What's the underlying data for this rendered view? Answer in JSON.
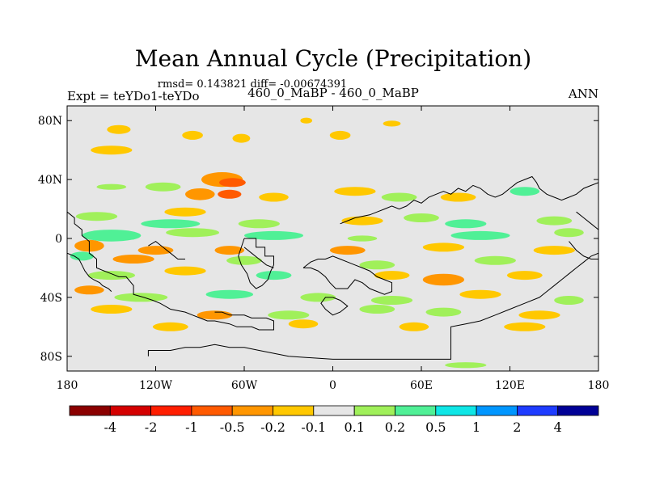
{
  "chart_data": {
    "type": "heatmap",
    "title": "Mean Annual Cycle (Precipitation)",
    "stats_line": "rmsd= 0.143821 diff= -0.00674391",
    "left_label": "Expt = teYDo1-teYDo",
    "center_label": "460_0_MaBP - 460_0_MaBP",
    "right_label": "ANN",
    "lon_range": [
      -180,
      180
    ],
    "lat_range": [
      -90,
      90
    ],
    "x_ticks": [
      {
        "lon": -180,
        "label": "180"
      },
      {
        "lon": -120,
        "label": "120W"
      },
      {
        "lon": -60,
        "label": "60W"
      },
      {
        "lon": 0,
        "label": "0"
      },
      {
        "lon": 60,
        "label": "60E"
      },
      {
        "lon": 120,
        "label": "120E"
      },
      {
        "lon": 180,
        "label": "180"
      }
    ],
    "y_ticks": [
      {
        "lat": 80,
        "label": "80N"
      },
      {
        "lat": 40,
        "label": "40N"
      },
      {
        "lat": 0,
        "label": "0"
      },
      {
        "lat": -40,
        "label": "40S"
      },
      {
        "lat": -80,
        "label": "80S"
      }
    ],
    "colorbar": {
      "levels": [
        "-4",
        "-2",
        "-1",
        "-0.5",
        "-0.2",
        "-0.1",
        "0.1",
        "0.2",
        "0.5",
        "1",
        "2",
        "4"
      ],
      "colors": [
        "#8b0000",
        "#d40000",
        "#ff1e00",
        "#ff5a00",
        "#ff9600",
        "#ffc800",
        "#e6e6e6",
        "#a0f05a",
        "#50f096",
        "#0fe6e6",
        "#0096ff",
        "#1e3cff",
        "#000096"
      ]
    },
    "anomalies": [
      {
        "lon": -150,
        "lat": 60,
        "rx": 14,
        "ry": 3,
        "value": -0.15
      },
      {
        "lon": -95,
        "lat": 70,
        "rx": 7,
        "ry": 3,
        "value": -0.15
      },
      {
        "lon": -62,
        "lat": 68,
        "rx": 6,
        "ry": 3,
        "value": -0.15
      },
      {
        "lon": -18,
        "lat": 80,
        "rx": 4,
        "ry": 2,
        "value": -0.15
      },
      {
        "lon": 5,
        "lat": 70,
        "rx": 7,
        "ry": 3,
        "value": -0.15
      },
      {
        "lon": 40,
        "lat": 78,
        "rx": 6,
        "ry": 2,
        "value": -0.15
      },
      {
        "lon": -145,
        "lat": 74,
        "rx": 8,
        "ry": 3,
        "value": -0.15
      },
      {
        "lon": -75,
        "lat": 40,
        "rx": 14,
        "ry": 5,
        "value": -0.3
      },
      {
        "lon": -68,
        "lat": 38,
        "rx": 9,
        "ry": 3,
        "value": -0.7
      },
      {
        "lon": -90,
        "lat": 30,
        "rx": 10,
        "ry": 4,
        "value": -0.3
      },
      {
        "lon": -70,
        "lat": 30,
        "rx": 8,
        "ry": 3,
        "value": -0.7
      },
      {
        "lon": -115,
        "lat": 35,
        "rx": 12,
        "ry": 3,
        "value": 0.15
      },
      {
        "lon": -150,
        "lat": 35,
        "rx": 10,
        "ry": 2,
        "value": 0.15
      },
      {
        "lon": -40,
        "lat": 28,
        "rx": 10,
        "ry": 3,
        "value": -0.15
      },
      {
        "lon": 15,
        "lat": 32,
        "rx": 14,
        "ry": 3,
        "value": -0.15
      },
      {
        "lon": 45,
        "lat": 28,
        "rx": 12,
        "ry": 3,
        "value": 0.15
      },
      {
        "lon": 85,
        "lat": 28,
        "rx": 12,
        "ry": 3,
        "value": -0.15
      },
      {
        "lon": 130,
        "lat": 32,
        "rx": 10,
        "ry": 3,
        "value": 0.3
      },
      {
        "lon": -160,
        "lat": 15,
        "rx": 14,
        "ry": 3,
        "value": 0.15
      },
      {
        "lon": -100,
        "lat": 18,
        "rx": 14,
        "ry": 3,
        "value": -0.15
      },
      {
        "lon": -110,
        "lat": 10,
        "rx": 20,
        "ry": 3,
        "value": 0.3
      },
      {
        "lon": -50,
        "lat": 10,
        "rx": 14,
        "ry": 3,
        "value": 0.15
      },
      {
        "lon": 20,
        "lat": 12,
        "rx": 14,
        "ry": 3,
        "value": -0.15
      },
      {
        "lon": 60,
        "lat": 14,
        "rx": 12,
        "ry": 3,
        "value": 0.15
      },
      {
        "lon": 90,
        "lat": 10,
        "rx": 14,
        "ry": 3,
        "value": 0.3
      },
      {
        "lon": 150,
        "lat": 12,
        "rx": 12,
        "ry": 3,
        "value": 0.15
      },
      {
        "lon": -150,
        "lat": 2,
        "rx": 20,
        "ry": 4,
        "value": 0.4
      },
      {
        "lon": -95,
        "lat": 4,
        "rx": 18,
        "ry": 3,
        "value": 0.15
      },
      {
        "lon": -40,
        "lat": 2,
        "rx": 20,
        "ry": 3,
        "value": 0.3
      },
      {
        "lon": 20,
        "lat": 0,
        "rx": 10,
        "ry": 2,
        "value": 0.15
      },
      {
        "lon": 100,
        "lat": 2,
        "rx": 20,
        "ry": 3,
        "value": 0.3
      },
      {
        "lon": 160,
        "lat": 4,
        "rx": 10,
        "ry": 3,
        "value": 0.15
      },
      {
        "lon": -165,
        "lat": -5,
        "rx": 10,
        "ry": 4,
        "value": -0.3
      },
      {
        "lon": -120,
        "lat": -8,
        "rx": 12,
        "ry": 3,
        "value": -0.3
      },
      {
        "lon": -70,
        "lat": -8,
        "rx": 10,
        "ry": 3,
        "value": -0.3
      },
      {
        "lon": 10,
        "lat": -8,
        "rx": 12,
        "ry": 3,
        "value": -0.3
      },
      {
        "lon": 75,
        "lat": -6,
        "rx": 14,
        "ry": 3,
        "value": -0.15
      },
      {
        "lon": 150,
        "lat": -8,
        "rx": 14,
        "ry": 3,
        "value": -0.15
      },
      {
        "lon": -170,
        "lat": -12,
        "rx": 8,
        "ry": 3,
        "value": 0.3
      },
      {
        "lon": -135,
        "lat": -14,
        "rx": 14,
        "ry": 3,
        "value": -0.3
      },
      {
        "lon": -60,
        "lat": -15,
        "rx": 12,
        "ry": 3,
        "value": 0.15
      },
      {
        "lon": 30,
        "lat": -18,
        "rx": 12,
        "ry": 3,
        "value": 0.15
      },
      {
        "lon": 110,
        "lat": -15,
        "rx": 14,
        "ry": 3,
        "value": 0.15
      },
      {
        "lon": -150,
        "lat": -25,
        "rx": 16,
        "ry": 3,
        "value": 0.15
      },
      {
        "lon": -100,
        "lat": -22,
        "rx": 14,
        "ry": 3,
        "value": -0.15
      },
      {
        "lon": -40,
        "lat": -25,
        "rx": 12,
        "ry": 3,
        "value": 0.3
      },
      {
        "lon": 40,
        "lat": -25,
        "rx": 12,
        "ry": 3,
        "value": -0.15
      },
      {
        "lon": 75,
        "lat": -28,
        "rx": 14,
        "ry": 4,
        "value": -0.3
      },
      {
        "lon": 130,
        "lat": -25,
        "rx": 12,
        "ry": 3,
        "value": -0.15
      },
      {
        "lon": -165,
        "lat": -35,
        "rx": 10,
        "ry": 3,
        "value": -0.3
      },
      {
        "lon": -130,
        "lat": -40,
        "rx": 18,
        "ry": 3,
        "value": 0.15
      },
      {
        "lon": -70,
        "lat": -38,
        "rx": 16,
        "ry": 3,
        "value": 0.3
      },
      {
        "lon": -10,
        "lat": -40,
        "rx": 12,
        "ry": 3,
        "value": 0.15
      },
      {
        "lon": 40,
        "lat": -42,
        "rx": 14,
        "ry": 3,
        "value": 0.15
      },
      {
        "lon": 100,
        "lat": -38,
        "rx": 14,
        "ry": 3,
        "value": -0.15
      },
      {
        "lon": 160,
        "lat": -42,
        "rx": 10,
        "ry": 3,
        "value": 0.15
      },
      {
        "lon": -150,
        "lat": -48,
        "rx": 14,
        "ry": 3,
        "value": -0.15
      },
      {
        "lon": -80,
        "lat": -52,
        "rx": 12,
        "ry": 3,
        "value": -0.3
      },
      {
        "lon": -30,
        "lat": -52,
        "rx": 14,
        "ry": 3,
        "value": 0.15
      },
      {
        "lon": 30,
        "lat": -48,
        "rx": 12,
        "ry": 3,
        "value": 0.15
      },
      {
        "lon": 75,
        "lat": -50,
        "rx": 12,
        "ry": 3,
        "value": 0.15
      },
      {
        "lon": 140,
        "lat": -52,
        "rx": 14,
        "ry": 3,
        "value": -0.15
      },
      {
        "lon": -110,
        "lat": -60,
        "rx": 12,
        "ry": 3,
        "value": -0.15
      },
      {
        "lon": -20,
        "lat": -58,
        "rx": 10,
        "ry": 3,
        "value": -0.15
      },
      {
        "lon": 55,
        "lat": -60,
        "rx": 10,
        "ry": 3,
        "value": -0.15
      },
      {
        "lon": 130,
        "lat": -60,
        "rx": 14,
        "ry": 3,
        "value": -0.15
      },
      {
        "lon": 90,
        "lat": -86,
        "rx": 14,
        "ry": 2,
        "value": 0.15
      }
    ],
    "coastlines": [
      [
        [
          -180,
          18
        ],
        [
          -175,
          14
        ],
        [
          -175,
          10
        ],
        [
          -170,
          6
        ],
        [
          -170,
          2
        ],
        [
          -165,
          -2
        ],
        [
          -165,
          -10
        ],
        [
          -160,
          -14
        ],
        [
          -160,
          -20
        ],
        [
          -155,
          -22
        ],
        [
          -150,
          -24
        ],
        [
          -145,
          -26
        ],
        [
          -140,
          -26
        ],
        [
          -135,
          -32
        ],
        [
          -135,
          -38
        ],
        [
          -128,
          -40
        ],
        [
          -122,
          -42
        ],
        [
          -117,
          -44
        ],
        [
          -110,
          -48
        ],
        [
          -100,
          -50
        ],
        [
          -95,
          -52
        ],
        [
          -90,
          -54
        ],
        [
          -85,
          -56
        ],
        [
          -80,
          -56
        ],
        [
          -70,
          -58
        ],
        [
          -65,
          -60
        ],
        [
          -55,
          -60
        ],
        [
          -50,
          -62
        ],
        [
          -40,
          -62
        ],
        [
          -40,
          -56
        ],
        [
          -45,
          -54
        ],
        [
          -55,
          -54
        ],
        [
          -60,
          -52
        ],
        [
          -70,
          -52
        ],
        [
          -75,
          -50
        ],
        [
          -80,
          -50
        ]
      ],
      [
        [
          -180,
          -10
        ],
        [
          -175,
          -12
        ],
        [
          -172,
          -14
        ],
        [
          -170,
          -18
        ],
        [
          -168,
          -22
        ],
        [
          -165,
          -26
        ],
        [
          -162,
          -28
        ],
        [
          -158,
          -30
        ],
        [
          -156,
          -32
        ],
        [
          -152,
          -34
        ],
        [
          -150,
          -36
        ]
      ],
      [
        [
          -125,
          -80
        ],
        [
          -125,
          -76
        ],
        [
          -110,
          -76
        ],
        [
          -100,
          -74
        ],
        [
          -90,
          -74
        ],
        [
          -80,
          -72
        ],
        [
          -70,
          -74
        ],
        [
          -60,
          -74
        ],
        [
          -50,
          -76
        ],
        [
          -40,
          -78
        ],
        [
          -30,
          -80
        ],
        [
          0,
          -82
        ],
        [
          30,
          -82
        ],
        [
          60,
          -82
        ],
        [
          80,
          -82
        ],
        [
          80,
          -60
        ],
        [
          90,
          -58
        ],
        [
          100,
          -56
        ],
        [
          110,
          -52
        ],
        [
          120,
          -48
        ],
        [
          130,
          -44
        ],
        [
          140,
          -40
        ],
        [
          145,
          -36
        ],
        [
          150,
          -32
        ],
        [
          155,
          -28
        ],
        [
          160,
          -24
        ],
        [
          165,
          -20
        ],
        [
          170,
          -16
        ],
        [
          175,
          -12
        ],
        [
          180,
          -10
        ]
      ],
      [
        [
          -60,
          0
        ],
        [
          -52,
          0
        ],
        [
          -52,
          -6
        ],
        [
          -46,
          -6
        ],
        [
          -46,
          -12
        ],
        [
          -40,
          -12
        ],
        [
          -40,
          -18
        ],
        [
          -42,
          -22
        ],
        [
          -44,
          -28
        ],
        [
          -48,
          -32
        ],
        [
          -52,
          -34
        ],
        [
          -56,
          -30
        ],
        [
          -58,
          -24
        ],
        [
          -62,
          -18
        ],
        [
          -64,
          -12
        ],
        [
          -62,
          -6
        ],
        [
          -60,
          0
        ]
      ],
      [
        [
          -20,
          -20
        ],
        [
          -15,
          -20
        ],
        [
          -10,
          -22
        ],
        [
          -5,
          -26
        ],
        [
          -2,
          -30
        ],
        [
          2,
          -34
        ],
        [
          10,
          -34
        ],
        [
          15,
          -28
        ],
        [
          20,
          -30
        ],
        [
          25,
          -34
        ],
        [
          30,
          -36
        ],
        [
          35,
          -38
        ],
        [
          40,
          -36
        ],
        [
          40,
          -30
        ],
        [
          35,
          -28
        ],
        [
          30,
          -26
        ],
        [
          25,
          -22
        ],
        [
          20,
          -20
        ],
        [
          15,
          -18
        ],
        [
          10,
          -16
        ],
        [
          5,
          -14
        ],
        [
          0,
          -12
        ],
        [
          -5,
          -14
        ],
        [
          -10,
          -14
        ],
        [
          -15,
          -16
        ],
        [
          -20,
          -20
        ]
      ],
      [
        [
          0,
          -40
        ],
        [
          5,
          -42
        ],
        [
          10,
          -46
        ],
        [
          5,
          -50
        ],
        [
          0,
          -52
        ],
        [
          -5,
          -48
        ],
        [
          -8,
          -44
        ],
        [
          -5,
          -40
        ],
        [
          0,
          -40
        ]
      ],
      [
        [
          5,
          10
        ],
        [
          10,
          12
        ],
        [
          15,
          14
        ],
        [
          25,
          16
        ],
        [
          30,
          18
        ],
        [
          35,
          20
        ],
        [
          40,
          22
        ],
        [
          45,
          20
        ],
        [
          50,
          22
        ],
        [
          55,
          26
        ],
        [
          60,
          24
        ],
        [
          65,
          28
        ],
        [
          70,
          30
        ],
        [
          75,
          32
        ],
        [
          80,
          30
        ],
        [
          85,
          34
        ],
        [
          90,
          32
        ],
        [
          95,
          36
        ],
        [
          100,
          34
        ],
        [
          105,
          30
        ]
      ],
      [
        [
          -125,
          -5
        ],
        [
          -120,
          -2
        ],
        [
          -115,
          -6
        ],
        [
          -110,
          -10
        ],
        [
          -105,
          -14
        ],
        [
          -100,
          -14
        ]
      ],
      [
        [
          -60,
          -6
        ],
        [
          -55,
          -10
        ],
        [
          -50,
          -14
        ],
        [
          -45,
          -18
        ],
        [
          -40,
          -20
        ]
      ],
      [
        [
          105,
          30
        ],
        [
          110,
          28
        ],
        [
          115,
          30
        ],
        [
          120,
          34
        ],
        [
          125,
          38
        ],
        [
          130,
          40
        ],
        [
          135,
          42
        ],
        [
          138,
          38
        ],
        [
          140,
          34
        ],
        [
          145,
          30
        ],
        [
          150,
          28
        ],
        [
          155,
          26
        ],
        [
          160,
          28
        ],
        [
          165,
          30
        ],
        [
          170,
          34
        ],
        [
          175,
          36
        ],
        [
          180,
          38
        ]
      ],
      [
        [
          165,
          18
        ],
        [
          170,
          14
        ],
        [
          175,
          10
        ],
        [
          180,
          6
        ]
      ],
      [
        [
          160,
          -2
        ],
        [
          165,
          -8
        ],
        [
          170,
          -12
        ],
        [
          175,
          -14
        ],
        [
          180,
          -14
        ]
      ]
    ]
  }
}
